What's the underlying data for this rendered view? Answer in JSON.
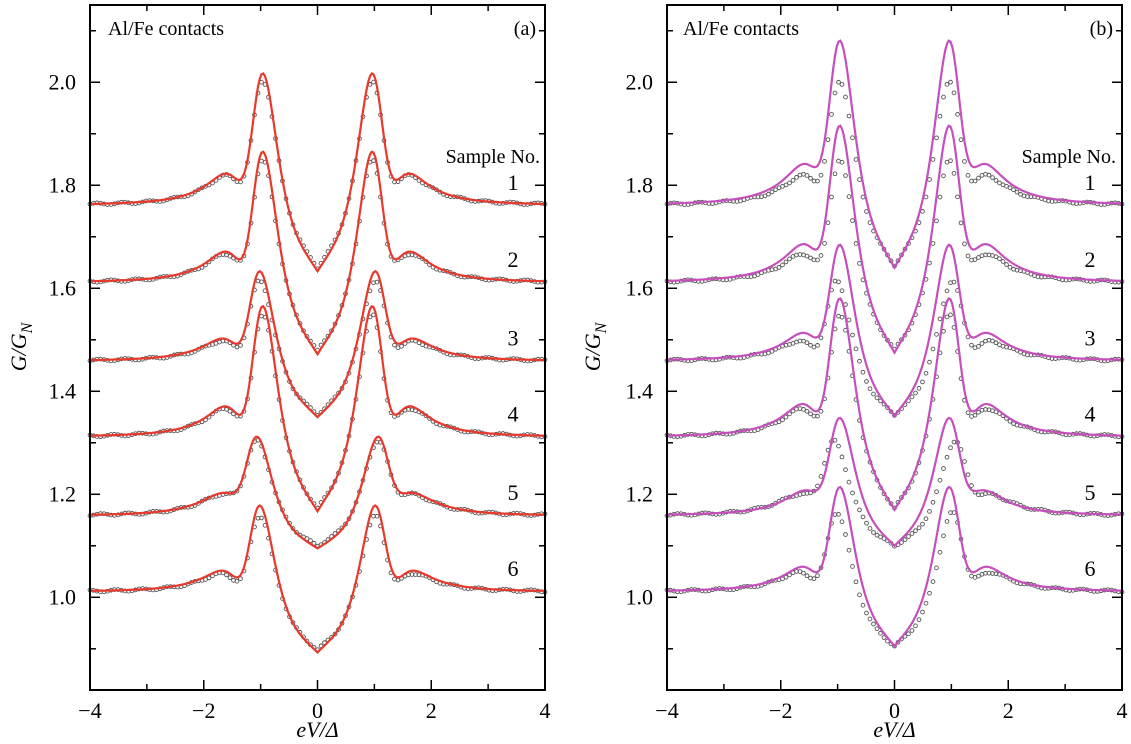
{
  "chart_data": [
    {
      "type": "line",
      "panel_label": "(a)",
      "title": "Al/Fe contacts",
      "xlabel": "eV/Δ",
      "ylabel": "G/G_N",
      "xlim": [
        -4,
        4
      ],
      "ylim": [
        0.82,
        2.15
      ],
      "xticks": [
        -4,
        -2,
        0,
        2,
        4
      ],
      "xtick_labels": [
        "−4",
        "−2",
        "0",
        "2",
        "4"
      ],
      "yticks": [
        1.0,
        1.2,
        1.4,
        1.6,
        1.8,
        2.0
      ],
      "ytick_labels": [
        "1.0",
        "1.2",
        "1.4",
        "1.6",
        "1.8",
        "2.0"
      ],
      "legend_header": "Sample No.",
      "fit_color": "#e8392c",
      "data_color": "#555555",
      "series": [
        {
          "name": "1",
          "base": 1.76,
          "data": {
            "peak": 1.998,
            "dip": 1.64,
            "peak_pos": 1.0
          },
          "fit": {
            "peak": 2.012,
            "dip": 1.633,
            "peak_pos": 1.0
          }
        },
        {
          "name": "2",
          "base": 1.61,
          "data": {
            "peak": 1.843,
            "dip": 1.478,
            "peak_pos": 1.0
          },
          "fit": {
            "peak": 1.86,
            "dip": 1.472,
            "peak_pos": 1.0
          }
        },
        {
          "name": "3",
          "base": 1.458,
          "data": {
            "peak": 1.612,
            "dip": 1.355,
            "peak_pos": 1.05
          },
          "fit": {
            "peak": 1.63,
            "dip": 1.35,
            "peak_pos": 1.05
          }
        },
        {
          "name": "4",
          "base": 1.31,
          "data": {
            "peak": 1.543,
            "dip": 1.172,
            "peak_pos": 1.0
          },
          "fit": {
            "peak": 1.56,
            "dip": 1.167,
            "peak_pos": 1.0
          }
        },
        {
          "name": "5",
          "base": 1.158,
          "data": {
            "peak": 1.302,
            "dip": 1.1,
            "peak_pos": 1.1
          },
          "fit": {
            "peak": 1.31,
            "dip": 1.095,
            "peak_pos": 1.1
          }
        },
        {
          "name": "6",
          "base": 1.01,
          "data": {
            "peak": 1.155,
            "dip": 0.898,
            "peak_pos": 1.05
          },
          "fit": {
            "peak": 1.175,
            "dip": 0.893,
            "peak_pos": 1.05
          }
        }
      ]
    },
    {
      "type": "line",
      "panel_label": "(b)",
      "title": "Al/Fe contacts",
      "xlabel": "eV/Δ",
      "ylabel": "G/G_N",
      "xlim": [
        -4,
        4
      ],
      "ylim": [
        0.82,
        2.15
      ],
      "xticks": [
        -4,
        -2,
        0,
        2,
        4
      ],
      "xtick_labels": [
        "−4",
        "−2",
        "0",
        "2",
        "4"
      ],
      "yticks": [
        1.0,
        1.2,
        1.4,
        1.6,
        1.8,
        2.0
      ],
      "ytick_labels": [
        "1.0",
        "1.2",
        "1.4",
        "1.6",
        "1.8",
        "2.0"
      ],
      "legend_header": "Sample No.",
      "fit_color": "#c64fbd",
      "data_color": "#555555",
      "series": [
        {
          "name": "1",
          "base": 1.76,
          "data": {
            "peak": 1.998,
            "dip": 1.645,
            "peak_pos": 1.0
          },
          "fit": {
            "peak": 2.075,
            "dip": 1.64,
            "peak_pos": 1.0
          }
        },
        {
          "name": "2",
          "base": 1.61,
          "data": {
            "peak": 1.843,
            "dip": 1.48,
            "peak_pos": 1.0
          },
          "fit": {
            "peak": 1.91,
            "dip": 1.475,
            "peak_pos": 1.0
          }
        },
        {
          "name": "3",
          "base": 1.458,
          "data": {
            "peak": 1.612,
            "dip": 1.355,
            "peak_pos": 1.05
          },
          "fit": {
            "peak": 1.68,
            "dip": 1.352,
            "peak_pos": 1.0
          }
        },
        {
          "name": "4",
          "base": 1.31,
          "data": {
            "peak": 1.543,
            "dip": 1.172,
            "peak_pos": 1.0
          },
          "fit": {
            "peak": 1.575,
            "dip": 1.17,
            "peak_pos": 1.0
          }
        },
        {
          "name": "5",
          "base": 1.158,
          "data": {
            "peak": 1.302,
            "dip": 1.1,
            "peak_pos": 1.1
          },
          "fit": {
            "peak": 1.345,
            "dip": 1.1,
            "peak_pos": 1.0
          }
        },
        {
          "name": "6",
          "base": 1.01,
          "data": {
            "peak": 1.162,
            "dip": 0.905,
            "peak_pos": 1.05
          },
          "fit": {
            "peak": 1.21,
            "dip": 0.905,
            "peak_pos": 1.0
          }
        }
      ]
    }
  ]
}
